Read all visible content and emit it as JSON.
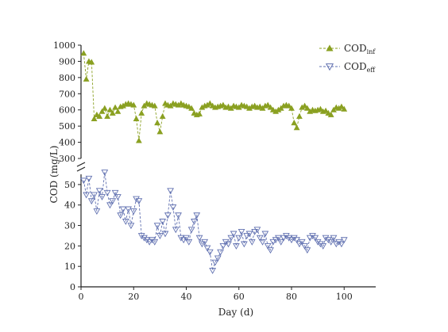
{
  "chart_data": {
    "type": "line",
    "xlabel": "Day (d)",
    "ylabel": "COD (mg/L)",
    "x_ticks": [
      0,
      20,
      40,
      60,
      80,
      100
    ],
    "upper_panel": {
      "ylim": [
        300,
        1000
      ],
      "y_ticks": [
        300,
        400,
        500,
        600,
        700,
        800,
        900,
        1000
      ],
      "axis_break_label": "300"
    },
    "lower_panel": {
      "ylim": [
        0,
        55
      ],
      "y_ticks": [
        0,
        10,
        20,
        30,
        40,
        50
      ]
    },
    "series": [
      {
        "legend_main": "COD",
        "legend_sub": "inf",
        "color": "#8aa021",
        "marker": "triangle-up-filled",
        "panel": "upper",
        "x": [
          1,
          2,
          3,
          4,
          5,
          6,
          7,
          8,
          9,
          10,
          11,
          12,
          13,
          14,
          15,
          16,
          17,
          18,
          19,
          20,
          21,
          22,
          23,
          24,
          25,
          26,
          27,
          28,
          29,
          30,
          31,
          32,
          33,
          34,
          35,
          36,
          37,
          38,
          39,
          40,
          41,
          42,
          43,
          44,
          45,
          46,
          47,
          48,
          49,
          50,
          51,
          52,
          53,
          54,
          55,
          56,
          57,
          58,
          59,
          60,
          61,
          62,
          63,
          64,
          65,
          66,
          67,
          68,
          69,
          70,
          71,
          72,
          73,
          74,
          75,
          76,
          77,
          78,
          79,
          80,
          81,
          82,
          83,
          84,
          85,
          86,
          87,
          88,
          89,
          90,
          91,
          92,
          93,
          94,
          95,
          96,
          97,
          98,
          99,
          100
        ],
        "y": [
          950,
          790,
          900,
          895,
          545,
          570,
          560,
          590,
          610,
          560,
          600,
          580,
          615,
          590,
          620,
          625,
          635,
          640,
          635,
          630,
          545,
          410,
          580,
          625,
          640,
          635,
          630,
          625,
          520,
          465,
          560,
          640,
          630,
          625,
          640,
          635,
          630,
          640,
          630,
          625,
          620,
          610,
          580,
          570,
          575,
          615,
          625,
          630,
          640,
          625,
          615,
          620,
          625,
          630,
          615,
          620,
          610,
          625,
          620,
          615,
          630,
          625,
          620,
          610,
          620,
          625,
          615,
          620,
          610,
          625,
          630,
          615,
          600,
          590,
          600,
          610,
          625,
          630,
          625,
          610,
          520,
          490,
          560,
          615,
          625,
          610,
          590,
          600,
          595,
          600,
          605,
          590,
          595,
          580,
          570,
          600,
          615,
          610,
          620,
          605
        ]
      },
      {
        "legend_main": "COD",
        "legend_sub": "eff",
        "color": "#6070b0",
        "marker": "triangle-down-open",
        "panel": "lower",
        "x": [
          1,
          2,
          3,
          4,
          5,
          6,
          7,
          8,
          9,
          10,
          11,
          12,
          13,
          14,
          15,
          16,
          17,
          18,
          19,
          20,
          21,
          22,
          23,
          24,
          25,
          26,
          27,
          28,
          29,
          30,
          31,
          32,
          33,
          34,
          35,
          36,
          37,
          38,
          39,
          40,
          41,
          42,
          43,
          44,
          45,
          46,
          47,
          48,
          49,
          50,
          51,
          52,
          53,
          54,
          55,
          56,
          57,
          58,
          59,
          60,
          61,
          62,
          63,
          64,
          65,
          66,
          67,
          68,
          69,
          70,
          71,
          72,
          73,
          74,
          75,
          76,
          77,
          78,
          79,
          80,
          81,
          82,
          83,
          84,
          85,
          86,
          87,
          88,
          89,
          90,
          91,
          92,
          93,
          94,
          95,
          96,
          97,
          98,
          99,
          100
        ],
        "y": [
          52,
          45,
          53,
          42,
          45,
          37,
          47,
          44,
          56,
          46,
          40,
          42,
          46,
          44,
          35,
          38,
          32,
          38,
          30,
          37,
          43,
          42,
          25,
          24,
          23,
          22,
          23,
          22,
          30,
          25,
          32,
          26,
          35,
          47,
          39,
          28,
          35,
          24,
          23,
          24,
          22,
          28,
          32,
          35,
          24,
          21,
          22,
          19,
          17,
          8,
          12,
          14,
          17,
          20,
          22,
          21,
          24,
          26,
          20,
          24,
          27,
          21,
          25,
          26,
          22,
          27,
          28,
          24,
          22,
          26,
          20,
          18,
          22,
          23,
          24,
          22,
          24,
          25,
          24,
          23,
          24,
          23,
          21,
          22,
          20,
          18,
          24,
          25,
          24,
          22,
          21,
          20,
          24,
          23,
          22,
          24,
          21,
          22,
          21,
          23
        ]
      }
    ]
  }
}
